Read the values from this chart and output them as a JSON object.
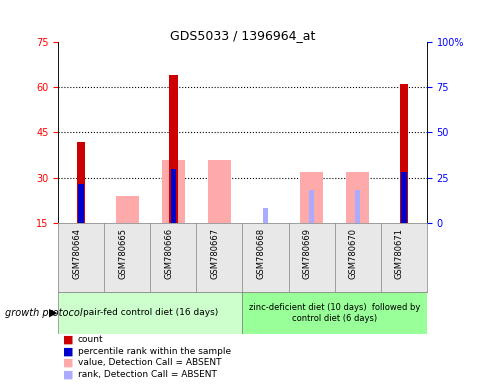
{
  "title": "GDS5033 / 1396964_at",
  "samples": [
    "GSM780664",
    "GSM780665",
    "GSM780666",
    "GSM780667",
    "GSM780668",
    "GSM780669",
    "GSM780670",
    "GSM780671"
  ],
  "count_values": [
    42,
    null,
    64,
    null,
    null,
    null,
    null,
    61
  ],
  "rank_values": [
    28,
    null,
    33,
    null,
    null,
    null,
    null,
    32
  ],
  "value_absent": [
    null,
    24,
    36,
    36,
    null,
    32,
    32,
    null
  ],
  "rank_absent": [
    null,
    null,
    27,
    null,
    20,
    26,
    26,
    null
  ],
  "ylim_left": [
    15,
    75
  ],
  "ylim_right": [
    0,
    100
  ],
  "yticks_left": [
    15,
    30,
    45,
    60,
    75
  ],
  "yticks_right": [
    0,
    25,
    50,
    75,
    100
  ],
  "ytick_right_labels": [
    "0",
    "25",
    "50",
    "75",
    "100%"
  ],
  "group1_samples": [
    0,
    1,
    2,
    3
  ],
  "group2_samples": [
    4,
    5,
    6,
    7
  ],
  "group1_label": "pair-fed control diet (16 days)",
  "group2_label": "zinc-deficient diet (10 days)  followed by\ncontrol diet (6 days)",
  "growth_protocol_label": "growth protocol",
  "group1_color": "#ccffcc",
  "group2_color": "#99ff99",
  "count_color": "#cc0000",
  "rank_color": "#0000cc",
  "value_absent_color": "#ffaaaa",
  "rank_absent_color": "#aaaaff",
  "hgrid_lines": [
    30,
    45,
    60
  ],
  "legend_items": [
    {
      "label": "count",
      "color": "#cc0000"
    },
    {
      "label": "percentile rank within the sample",
      "color": "#0000cc"
    },
    {
      "label": "value, Detection Call = ABSENT",
      "color": "#ffaaaa"
    },
    {
      "label": "rank, Detection Call = ABSENT",
      "color": "#aaaaff"
    }
  ]
}
